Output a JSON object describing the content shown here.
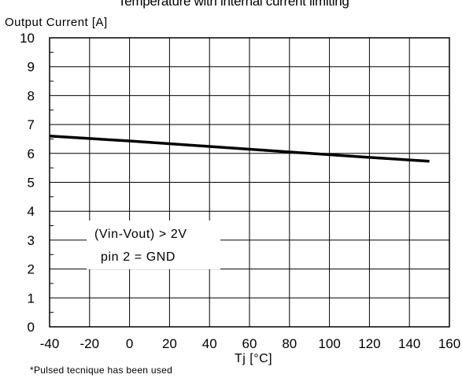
{
  "chart_data": {
    "type": "line",
    "title": "Temperature with internal current limiting",
    "ylabel": "Output Current  [A]",
    "xlabel": "Tj  [°C]",
    "footnote": "*Pulsed tecnique has been used",
    "xlim": [
      -40,
      160
    ],
    "ylim": [
      0,
      10
    ],
    "x_ticks": [
      "-40",
      "-20",
      "0",
      "20",
      "40",
      "60",
      "80",
      "100",
      "120",
      "140",
      "160"
    ],
    "y_ticks": [
      "0",
      "1",
      "2",
      "3",
      "4",
      "5",
      "6",
      "7",
      "8",
      "9",
      "10"
    ],
    "grid": true,
    "annotations": [
      "(Vin-Vout) > 2V",
      "pin 2 = GND"
    ],
    "series": [
      {
        "x": [
          -40,
          0,
          40,
          80,
          120,
          150
        ],
        "y": [
          6.6,
          6.43,
          6.24,
          6.05,
          5.86,
          5.73
        ]
      }
    ]
  }
}
